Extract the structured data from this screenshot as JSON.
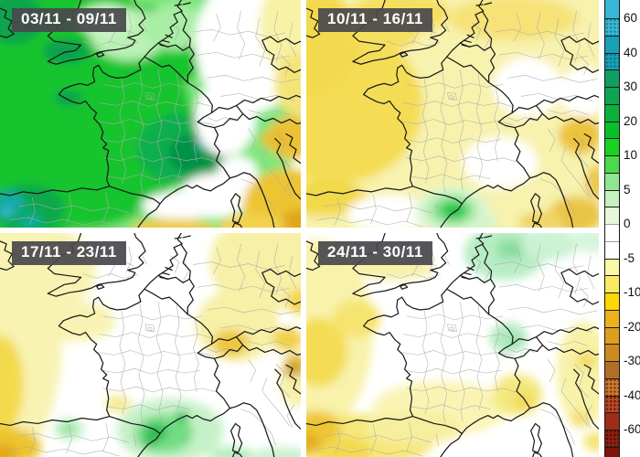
{
  "panels": [
    {
      "label": "03/11 - 09/11"
    },
    {
      "label": "10/11 - 16/11"
    },
    {
      "label": "17/11 - 23/11"
    },
    {
      "label": "24/11 - 30/11"
    }
  ],
  "colorbar": {
    "tick_labels": [
      "60",
      "40",
      "30",
      "20",
      "10",
      "5",
      "0",
      "-5",
      "-10",
      "-20",
      "-30",
      "-40",
      "-60"
    ],
    "segments": [
      {
        "c": "#38b7d7"
      },
      {
        "c": "#38b7d7",
        "dot": "#0e7f96"
      },
      {
        "c": "#18a0b6"
      },
      {
        "c": "#18a0b6",
        "dot": "#0b6e80"
      },
      {
        "c": "#109e62"
      },
      {
        "c": "#0da455"
      },
      {
        "c": "#0cb13c"
      },
      {
        "c": "#0ac02a"
      },
      {
        "c": "#1bd121"
      },
      {
        "c": "#4cd94c"
      },
      {
        "c": "#90e690"
      },
      {
        "c": "#c4f1bd"
      },
      {
        "c": "#e5f8dc"
      },
      {
        "c": "#ffffff"
      },
      {
        "c": "#ffffff"
      },
      {
        "c": "#fbf8a8"
      },
      {
        "c": "#f9ea62"
      },
      {
        "c": "#fcd703"
      },
      {
        "c": "#ecb11b"
      },
      {
        "c": "#dd9e1f"
      },
      {
        "c": "#cd8a20"
      },
      {
        "c": "#b06f28"
      },
      {
        "c": "#c87830",
        "dot": "#7e2608"
      },
      {
        "c": "#b84828",
        "dot": "#5e1404"
      },
      {
        "c": "#9f2c18"
      },
      {
        "c": "#8c2014",
        "dot": "#4a0a02"
      },
      {
        "c": "#7d150c"
      }
    ]
  },
  "colors": {
    "label_box": "#4a4a4c",
    "label_text": "#ffffff",
    "coastline": "#1a1a1a",
    "admin_lines": "#adadad",
    "background": "#ffffff"
  }
}
